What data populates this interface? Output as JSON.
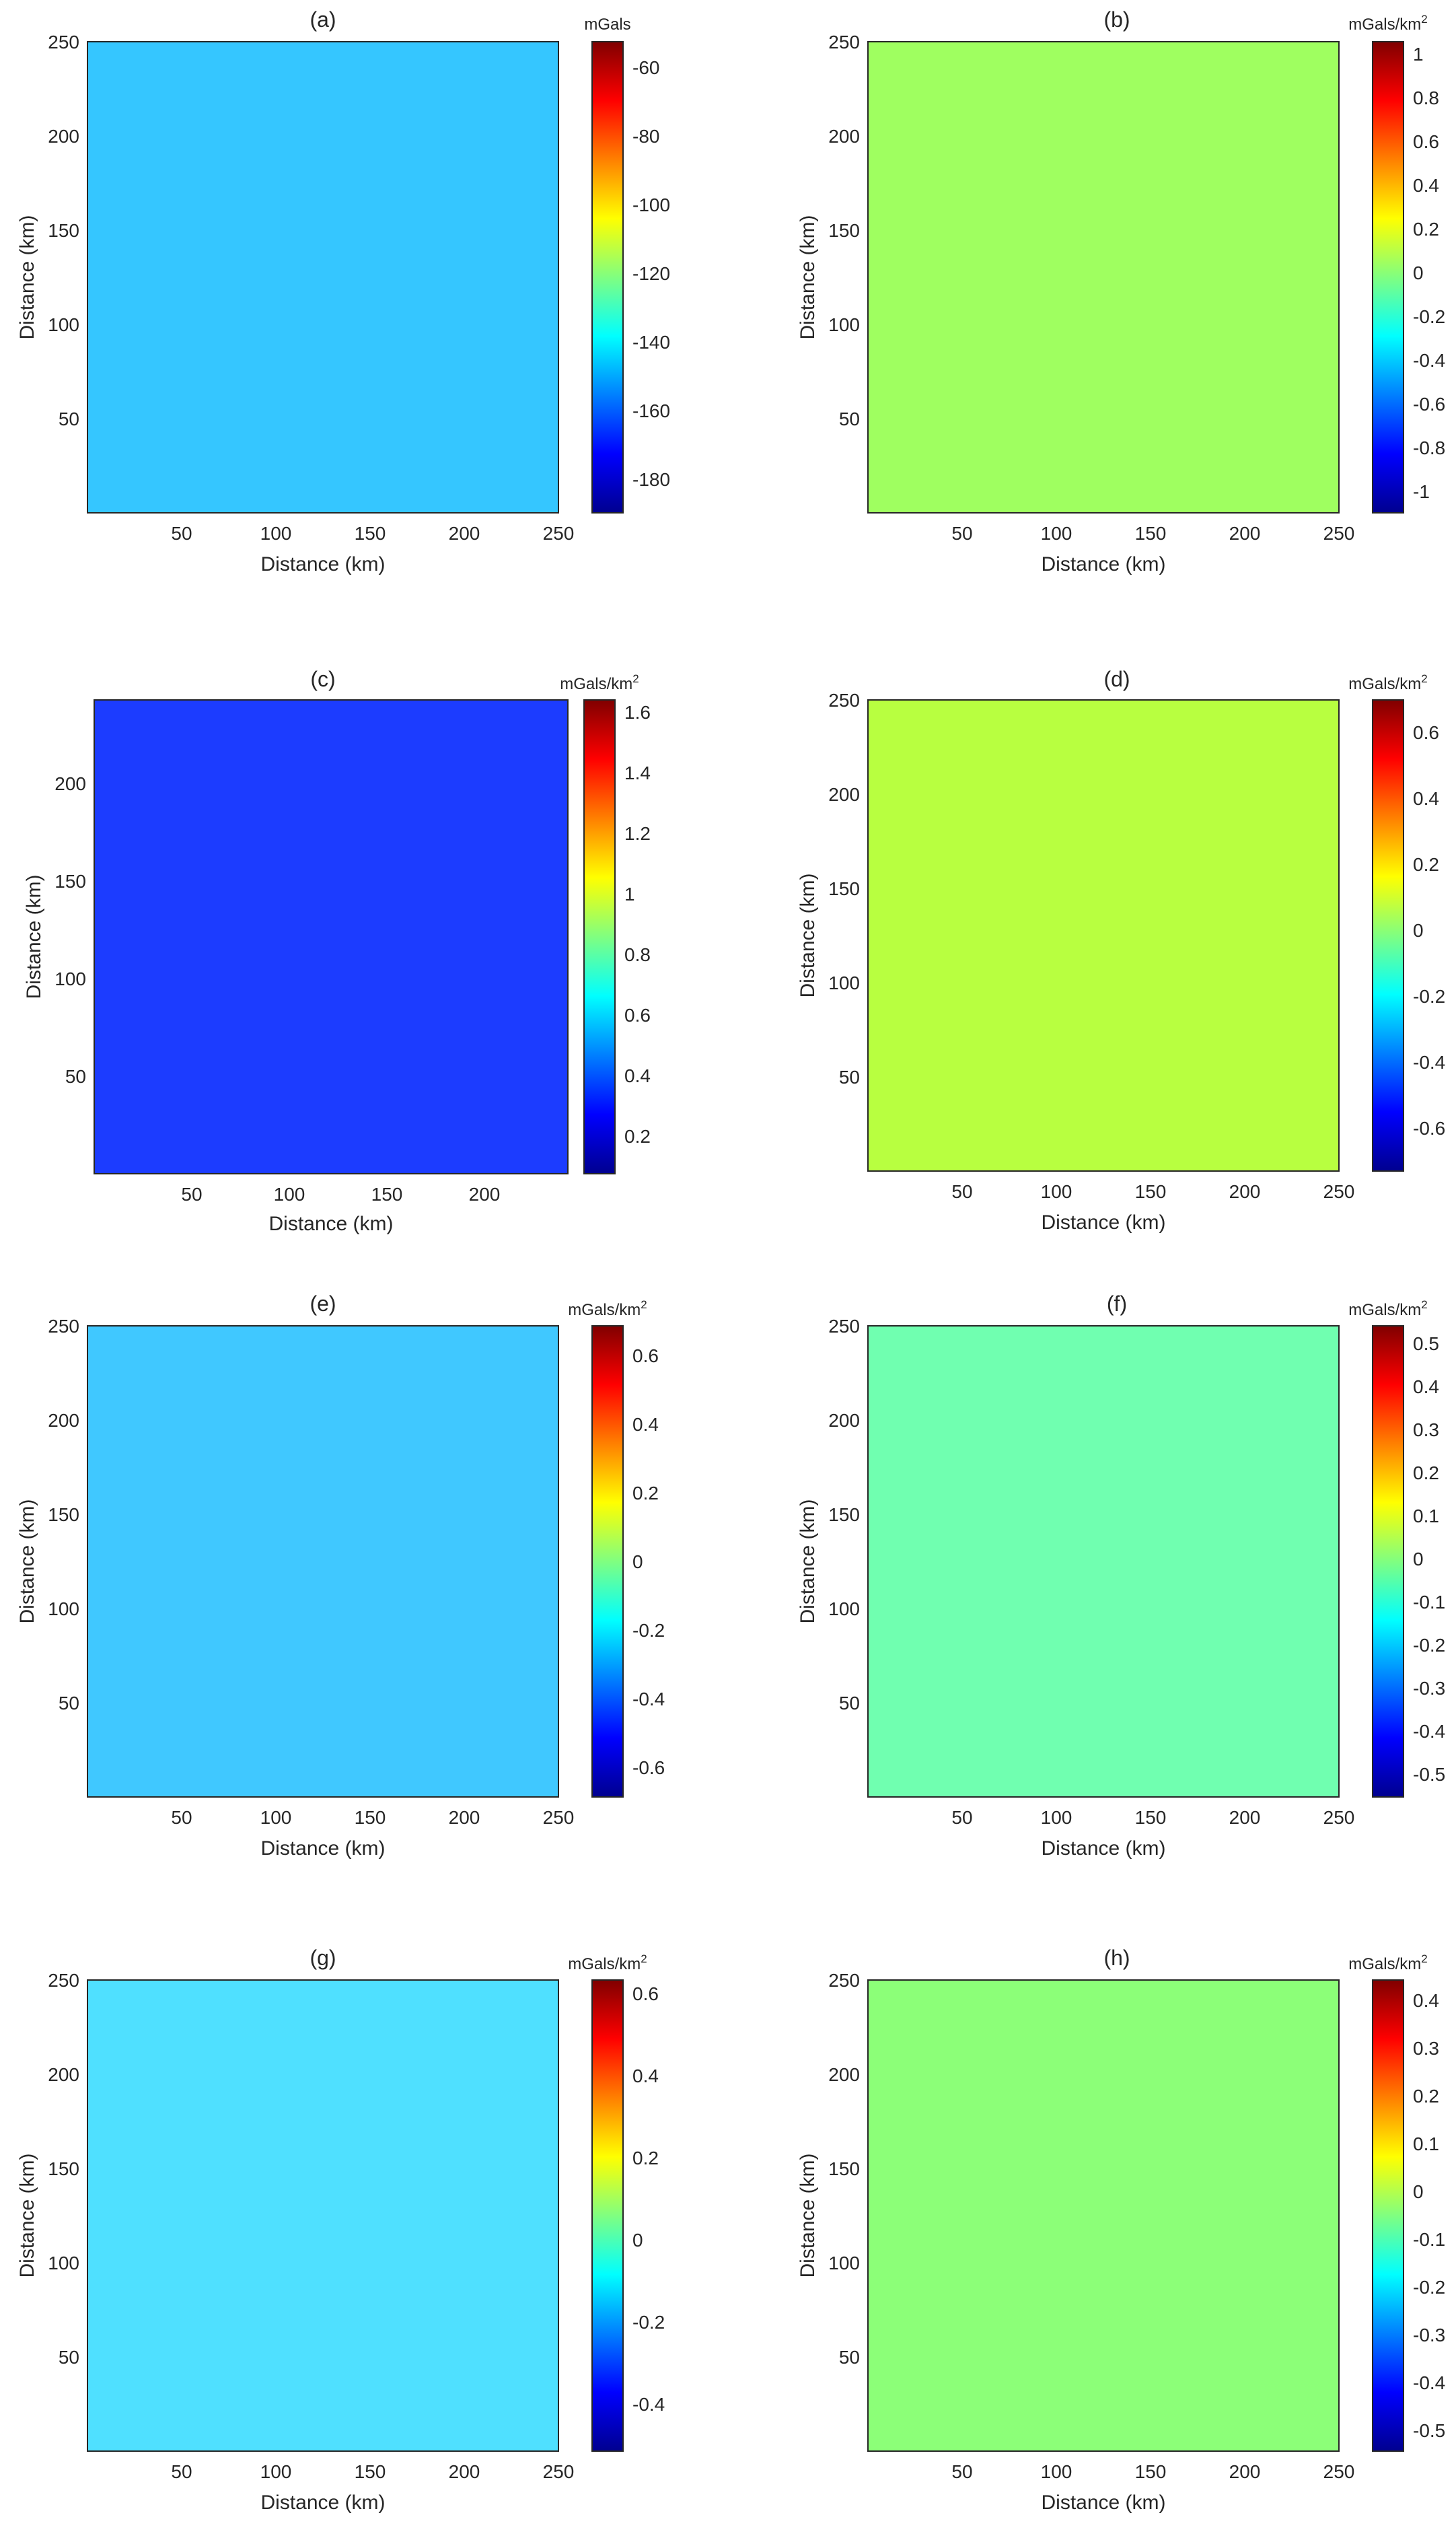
{
  "figure": {
    "panels": [
      {
        "id": "a",
        "title": "(a)",
        "xlabel": "Distance (km)",
        "ylabel": "Distance (km)",
        "x_ticks": [
          "50",
          "100",
          "150",
          "200",
          "250"
        ],
        "y_ticks": [
          "50",
          "100",
          "150",
          "200",
          "250"
        ],
        "colorbar": {
          "unit": "mGals",
          "unit_sup": "",
          "ticks": [
            "-60",
            "-80",
            "-100",
            "-120",
            "-140",
            "-160",
            "-180"
          ]
        }
      },
      {
        "id": "b",
        "title": "(b)",
        "xlabel": "Distance (km)",
        "ylabel": "Distance (km)",
        "x_ticks": [
          "50",
          "100",
          "150",
          "200",
          "250"
        ],
        "y_ticks": [
          "50",
          "100",
          "150",
          "200",
          "250"
        ],
        "colorbar": {
          "unit": "mGals/km",
          "unit_sup": "2",
          "ticks": [
            "1",
            "0.8",
            "0.6",
            "0.4",
            "0.2",
            "0",
            "-0.2",
            "-0.4",
            "-0.6",
            "-0.8",
            "-1"
          ]
        }
      },
      {
        "id": "c",
        "title": "(c)",
        "xlabel": "Distance (km)",
        "ylabel": "Distance (km)",
        "x_ticks": [
          "50",
          "100",
          "150",
          "200"
        ],
        "y_ticks": [
          "50",
          "100",
          "150",
          "200"
        ],
        "colorbar": {
          "unit": "mGals/km",
          "unit_sup": "2",
          "ticks": [
            "1.6",
            "1.4",
            "1.2",
            "1",
            "0.8",
            "0.6",
            "0.4",
            "0.2"
          ]
        }
      },
      {
        "id": "d",
        "title": "(d)",
        "xlabel": "Distance (km)",
        "ylabel": "Distance (km)",
        "x_ticks": [
          "50",
          "100",
          "150",
          "200",
          "250"
        ],
        "y_ticks": [
          "50",
          "100",
          "150",
          "200",
          "250"
        ],
        "colorbar": {
          "unit": "mGals/km",
          "unit_sup": "2",
          "ticks": [
            "0.6",
            "0.4",
            "0.2",
            "0",
            "-0.2",
            "-0.4",
            "-0.6"
          ]
        }
      },
      {
        "id": "e",
        "title": "(e)",
        "xlabel": "Distance (km)",
        "ylabel": "Distance (km)",
        "x_ticks": [
          "50",
          "100",
          "150",
          "200",
          "250"
        ],
        "y_ticks": [
          "50",
          "100",
          "150",
          "200",
          "250"
        ],
        "colorbar": {
          "unit": "mGals/km",
          "unit_sup": "2",
          "ticks": [
            "0.6",
            "0.4",
            "0.2",
            "0",
            "-0.2",
            "-0.4",
            "-0.6"
          ]
        }
      },
      {
        "id": "f",
        "title": "(f)",
        "xlabel": "Distance (km)",
        "ylabel": "Distance (km)",
        "x_ticks": [
          "50",
          "100",
          "150",
          "200",
          "250"
        ],
        "y_ticks": [
          "50",
          "100",
          "150",
          "200",
          "250"
        ],
        "colorbar": {
          "unit": "mGals/km",
          "unit_sup": "2",
          "ticks": [
            "0.5",
            "0.4",
            "0.3",
            "0.2",
            "0.1",
            "0",
            "-0.1",
            "-0.2",
            "-0.3",
            "-0.4",
            "-0.5"
          ]
        }
      },
      {
        "id": "g",
        "title": "(g)",
        "xlabel": "Distance (km)",
        "ylabel": "Distance (km)",
        "x_ticks": [
          "50",
          "100",
          "150",
          "200",
          "250"
        ],
        "y_ticks": [
          "50",
          "100",
          "150",
          "200",
          "250"
        ],
        "colorbar": {
          "unit": "mGals/km",
          "unit_sup": "2",
          "ticks": [
            "0.6",
            "0.4",
            "0.2",
            "0",
            "-0.2",
            "-0.4"
          ]
        }
      },
      {
        "id": "h",
        "title": "(h)",
        "xlabel": "Distance (km)",
        "ylabel": "Distance (km)",
        "x_ticks": [
          "50",
          "100",
          "150",
          "200",
          "250"
        ],
        "y_ticks": [
          "50",
          "100",
          "150",
          "200",
          "250"
        ],
        "colorbar": {
          "unit": "mGals/km",
          "unit_sup": "2",
          "ticks": [
            "0.4",
            "0.3",
            "0.2",
            "0.1",
            "0",
            "-0.1",
            "-0.2",
            "-0.3",
            "-0.4",
            "-0.5"
          ]
        }
      }
    ]
  },
  "chart_data": [
    {
      "type": "heatmap",
      "title": "(a)",
      "xlabel": "Distance (km)",
      "ylabel": "Distance (km)",
      "xlim": [
        0,
        250
      ],
      "ylim": [
        0,
        250
      ],
      "colormap": "jet",
      "colorbar_label": "mGals",
      "clim": [
        -188,
        -56
      ]
    },
    {
      "type": "heatmap",
      "title": "(b)",
      "xlabel": "Distance (km)",
      "ylabel": "Distance (km)",
      "xlim": [
        0,
        250
      ],
      "ylim": [
        0,
        250
      ],
      "colormap": "jet",
      "colorbar_label": "mGals/km2",
      "clim": [
        -1.05,
        1.1
      ]
    },
    {
      "type": "heatmap",
      "title": "(c)",
      "xlabel": "Distance (km)",
      "ylabel": "Distance (km)",
      "xlim": [
        0,
        243
      ],
      "ylim": [
        0,
        243
      ],
      "colormap": "jet",
      "colorbar_label": "mGals/km2",
      "clim": [
        0.08,
        1.64
      ]
    },
    {
      "type": "heatmap",
      "title": "(d)",
      "xlabel": "Distance (km)",
      "ylabel": "Distance (km)",
      "xlim": [
        0,
        250
      ],
      "ylim": [
        0,
        250
      ],
      "colormap": "jet",
      "colorbar_label": "mGals/km2",
      "clim": [
        -0.72,
        0.72
      ]
    },
    {
      "type": "heatmap",
      "title": "(e)",
      "xlabel": "Distance (km)",
      "ylabel": "Distance (km)",
      "xlim": [
        0,
        250
      ],
      "ylim": [
        0,
        250
      ],
      "colormap": "jet",
      "colorbar_label": "mGals/km2",
      "clim": [
        -0.66,
        0.66
      ]
    },
    {
      "type": "heatmap",
      "title": "(f)",
      "xlabel": "Distance (km)",
      "ylabel": "Distance (km)",
      "xlim": [
        0,
        250
      ],
      "ylim": [
        0,
        250
      ],
      "colormap": "jet",
      "colorbar_label": "mGals/km2",
      "clim": [
        -0.53,
        0.55
      ]
    },
    {
      "type": "heatmap",
      "title": "(g)",
      "xlabel": "Distance (km)",
      "ylabel": "Distance (km)",
      "xlim": [
        0,
        250
      ],
      "ylim": [
        0,
        250
      ],
      "colormap": "jet",
      "colorbar_label": "mGals/km2",
      "clim": [
        -0.55,
        0.62
      ]
    },
    {
      "type": "heatmap",
      "title": "(h)",
      "xlabel": "Distance (km)",
      "ylabel": "Distance (km)",
      "xlim": [
        0,
        250
      ],
      "ylim": [
        0,
        250
      ],
      "colormap": "jet",
      "colorbar_label": "mGals/km2",
      "clim": [
        -0.52,
        0.49
      ]
    }
  ]
}
